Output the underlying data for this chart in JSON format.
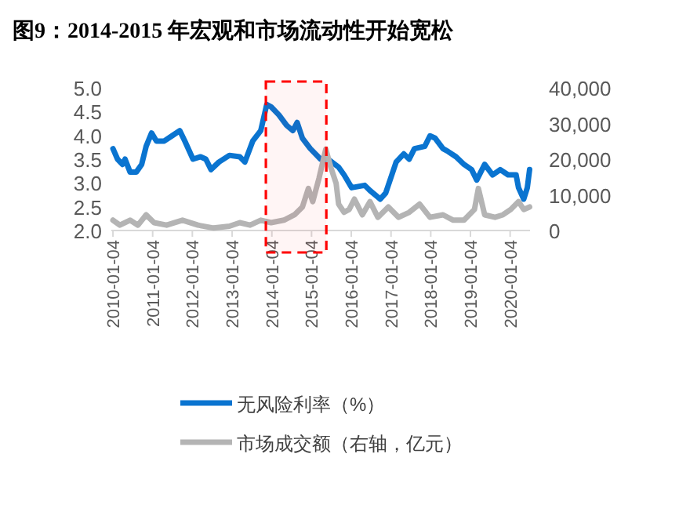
{
  "chart_data": {
    "type": "line",
    "title": "图9：2014-2015 年宏观和市场流动性开始宽松",
    "xlim": [
      "2009-12-20",
      "2020-07-05"
    ],
    "xticks": [
      "2010-01-04",
      "2011-01-04",
      "2012-01-04",
      "2013-01-04",
      "2014-01-04",
      "2015-01-04",
      "2016-01-04",
      "2017-01-04",
      "2018-01-04",
      "2019-01-04",
      "2020-01-04"
    ],
    "ylim": [
      2,
      5
    ],
    "yticks": [
      {
        "value": 2,
        "label": "2.0"
      },
      {
        "value": 2.5,
        "label": "2.5"
      },
      {
        "value": 3,
        "label": "3.0"
      },
      {
        "value": 3.5,
        "label": "3.5"
      },
      {
        "value": 4,
        "label": "4.0"
      },
      {
        "value": 4.5,
        "label": "4.5"
      },
      {
        "value": 5,
        "label": "5.0"
      }
    ],
    "y2lim": [
      0,
      40000
    ],
    "y2ticks": [
      0,
      {
        "value": 10000,
        "label": "10,000"
      },
      {
        "value": 20000,
        "label": "20,000"
      },
      {
        "value": 30000,
        "label": "30,000"
      },
      {
        "value": 40000,
        "label": "40,000"
      }
    ],
    "bands": [
      {
        "axis": "x",
        "from": "2013-11-10",
        "to": "2015-05-20",
        "color": "#ff0000"
      }
    ],
    "grid": false,
    "legend": "bottom",
    "line_style": "solid",
    "marker": "none",
    "series": [
      {
        "name": "无风险利率（%）",
        "color": "#0a74d0",
        "x": [
          "2010-01-04",
          "2010-02-15",
          "2010-04-01",
          "2010-04-25",
          "2010-06-10",
          "2010-08-07",
          "2010-09-25",
          "2010-11-05",
          "2010-12-25",
          "2011-02-08",
          "2011-04-20",
          "2011-07-01",
          "2011-09-10",
          "2011-10-27",
          "2012-01-10",
          "2012-03-20",
          "2012-05-07",
          "2012-06-24",
          "2012-09-05",
          "2012-12-10",
          "2013-03-15",
          "2013-05-01",
          "2013-07-12",
          "2013-09-24",
          "2013-10-16",
          "2013-11-18",
          "2013-12-28",
          "2014-03-10",
          "2014-05-20",
          "2014-07-16",
          "2014-08-25",
          "2014-10-12",
          "2014-12-24",
          "2015-03-28",
          "2015-06-05",
          "2015-09-10",
          "2015-10-30",
          "2016-01-08",
          "2016-05-07",
          "2016-06-24",
          "2016-09-27",
          "2016-11-16",
          "2017-02-20",
          "2017-05-01",
          "2017-06-20",
          "2017-08-07",
          "2017-11-10",
          "2017-12-28",
          "2018-02-14",
          "2018-04-27",
          "2018-06-13",
          "2018-08-25",
          "2018-11-06",
          "2019-01-15",
          "2019-03-03",
          "2019-05-15",
          "2019-07-27",
          "2019-10-05",
          "2019-12-16",
          "2020-02-28",
          "2020-03-21",
          "2020-05-08",
          "2020-06-10",
          "2020-07-01"
        ],
        "values": [
          3.72,
          3.5,
          3.39,
          3.5,
          3.23,
          3.23,
          3.39,
          3.77,
          4.05,
          3.88,
          3.88,
          3.99,
          4.1,
          3.88,
          3.5,
          3.55,
          3.5,
          3.28,
          3.44,
          3.58,
          3.55,
          3.44,
          3.88,
          4.1,
          4.32,
          4.65,
          4.6,
          4.43,
          4.21,
          4.1,
          4.27,
          3.94,
          3.72,
          3.5,
          3.5,
          3.33,
          3.17,
          2.9,
          2.95,
          2.84,
          2.66,
          2.79,
          3.44,
          3.61,
          3.5,
          3.72,
          3.77,
          3.99,
          3.94,
          3.72,
          3.66,
          3.55,
          3.39,
          3.28,
          3.06,
          3.39,
          3.17,
          3.28,
          3.17,
          3.17,
          2.9,
          2.66,
          2.9,
          3.28
        ]
      },
      {
        "name": "市场成交额（右轴，亿元）",
        "color": "#b4b4b4",
        "axis": "y2",
        "x": [
          "2010-01-04",
          "2010-03-08",
          "2010-06-10",
          "2010-08-22",
          "2010-11-05",
          "2011-01-17",
          "2011-05-12",
          "2011-10-05",
          "2012-02-25",
          "2012-07-18",
          "2012-12-10",
          "2013-03-15",
          "2013-06-18",
          "2013-09-24",
          "2013-12-28",
          "2014-04-25",
          "2014-07-31",
          "2014-10-12",
          "2014-12-06",
          "2015-01-15",
          "2015-03-14",
          "2015-05-15",
          "2015-07-01",
          "2015-08-18",
          "2015-09-10",
          "2015-10-30",
          "2015-12-16",
          "2016-02-02",
          "2016-04-15",
          "2016-06-24",
          "2016-09-05",
          "2016-12-10",
          "2017-03-15",
          "2017-06-20",
          "2017-09-24",
          "2017-12-28",
          "2018-04-27",
          "2018-07-30",
          "2018-11-06",
          "2019-02-10",
          "2019-03-18",
          "2019-05-15",
          "2019-08-18",
          "2019-10-30",
          "2020-01-10",
          "2020-03-21",
          "2020-05-08",
          "2020-07-01"
        ],
        "values": [
          2900,
          1500,
          2900,
          1500,
          4400,
          2200,
          1500,
          2900,
          1500,
          700,
          1200,
          2200,
          1500,
          2900,
          2200,
          2900,
          4400,
          6600,
          11800,
          8100,
          14700,
          22800,
          17600,
          13200,
          7400,
          5100,
          5900,
          8800,
          4400,
          8100,
          3700,
          6600,
          3700,
          5100,
          7400,
          3700,
          4400,
          2900,
          2900,
          5900,
          11800,
          4400,
          3700,
          4400,
          5900,
          8100,
          5900,
          6600
        ]
      }
    ]
  }
}
